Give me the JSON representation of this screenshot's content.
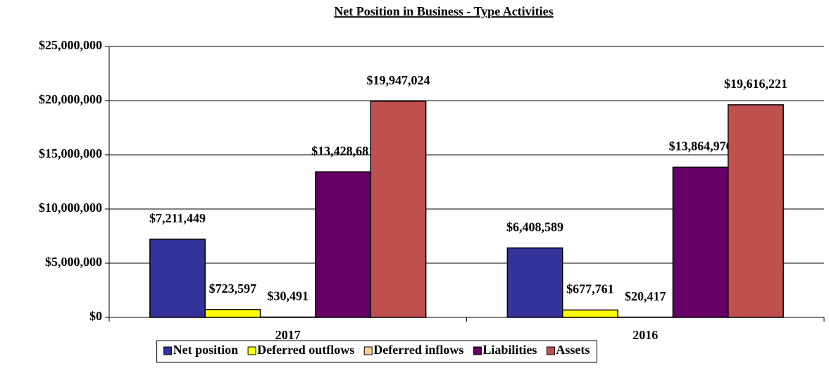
{
  "chart_data": {
    "type": "bar",
    "title": "Net Position in Business - Type Activities",
    "categories": [
      "2017",
      "2016"
    ],
    "series": [
      {
        "name": "Net position",
        "color": "#333399",
        "values": [
          7211449,
          6408589
        ],
        "value_labels": [
          "$7,211,449",
          "$6,408,589"
        ]
      },
      {
        "name": "Deferred outflows",
        "color": "#ffff00",
        "values": [
          723597,
          677761
        ],
        "value_labels": [
          "$723,597",
          "$677,761"
        ]
      },
      {
        "name": "Deferred inflows",
        "color": "#ffcc99",
        "values": [
          30491,
          20417
        ],
        "value_labels": [
          "$30,491",
          "$20,417"
        ]
      },
      {
        "name": "Liabilities",
        "color": "#660066",
        "values": [
          13428681,
          13864976
        ],
        "value_labels": [
          "$13,428,681",
          "$13,864,976"
        ]
      },
      {
        "name": "Assets",
        "color": "#c0504d",
        "values": [
          19947024,
          19616221
        ],
        "value_labels": [
          "$19,947,024",
          "$19,616,221"
        ]
      }
    ],
    "ylim": [
      0,
      25000000
    ],
    "yticks": [
      {
        "value": 0,
        "label": "$0"
      },
      {
        "value": 5000000,
        "label": "$5,000,000"
      },
      {
        "value": 10000000,
        "label": "$10,000,000"
      },
      {
        "value": 15000000,
        "label": "$15,000,000"
      },
      {
        "value": 20000000,
        "label": "$20,000,000"
      },
      {
        "value": 25000000,
        "label": "$25,000,000"
      }
    ],
    "grid": true,
    "legend": "bottom"
  }
}
